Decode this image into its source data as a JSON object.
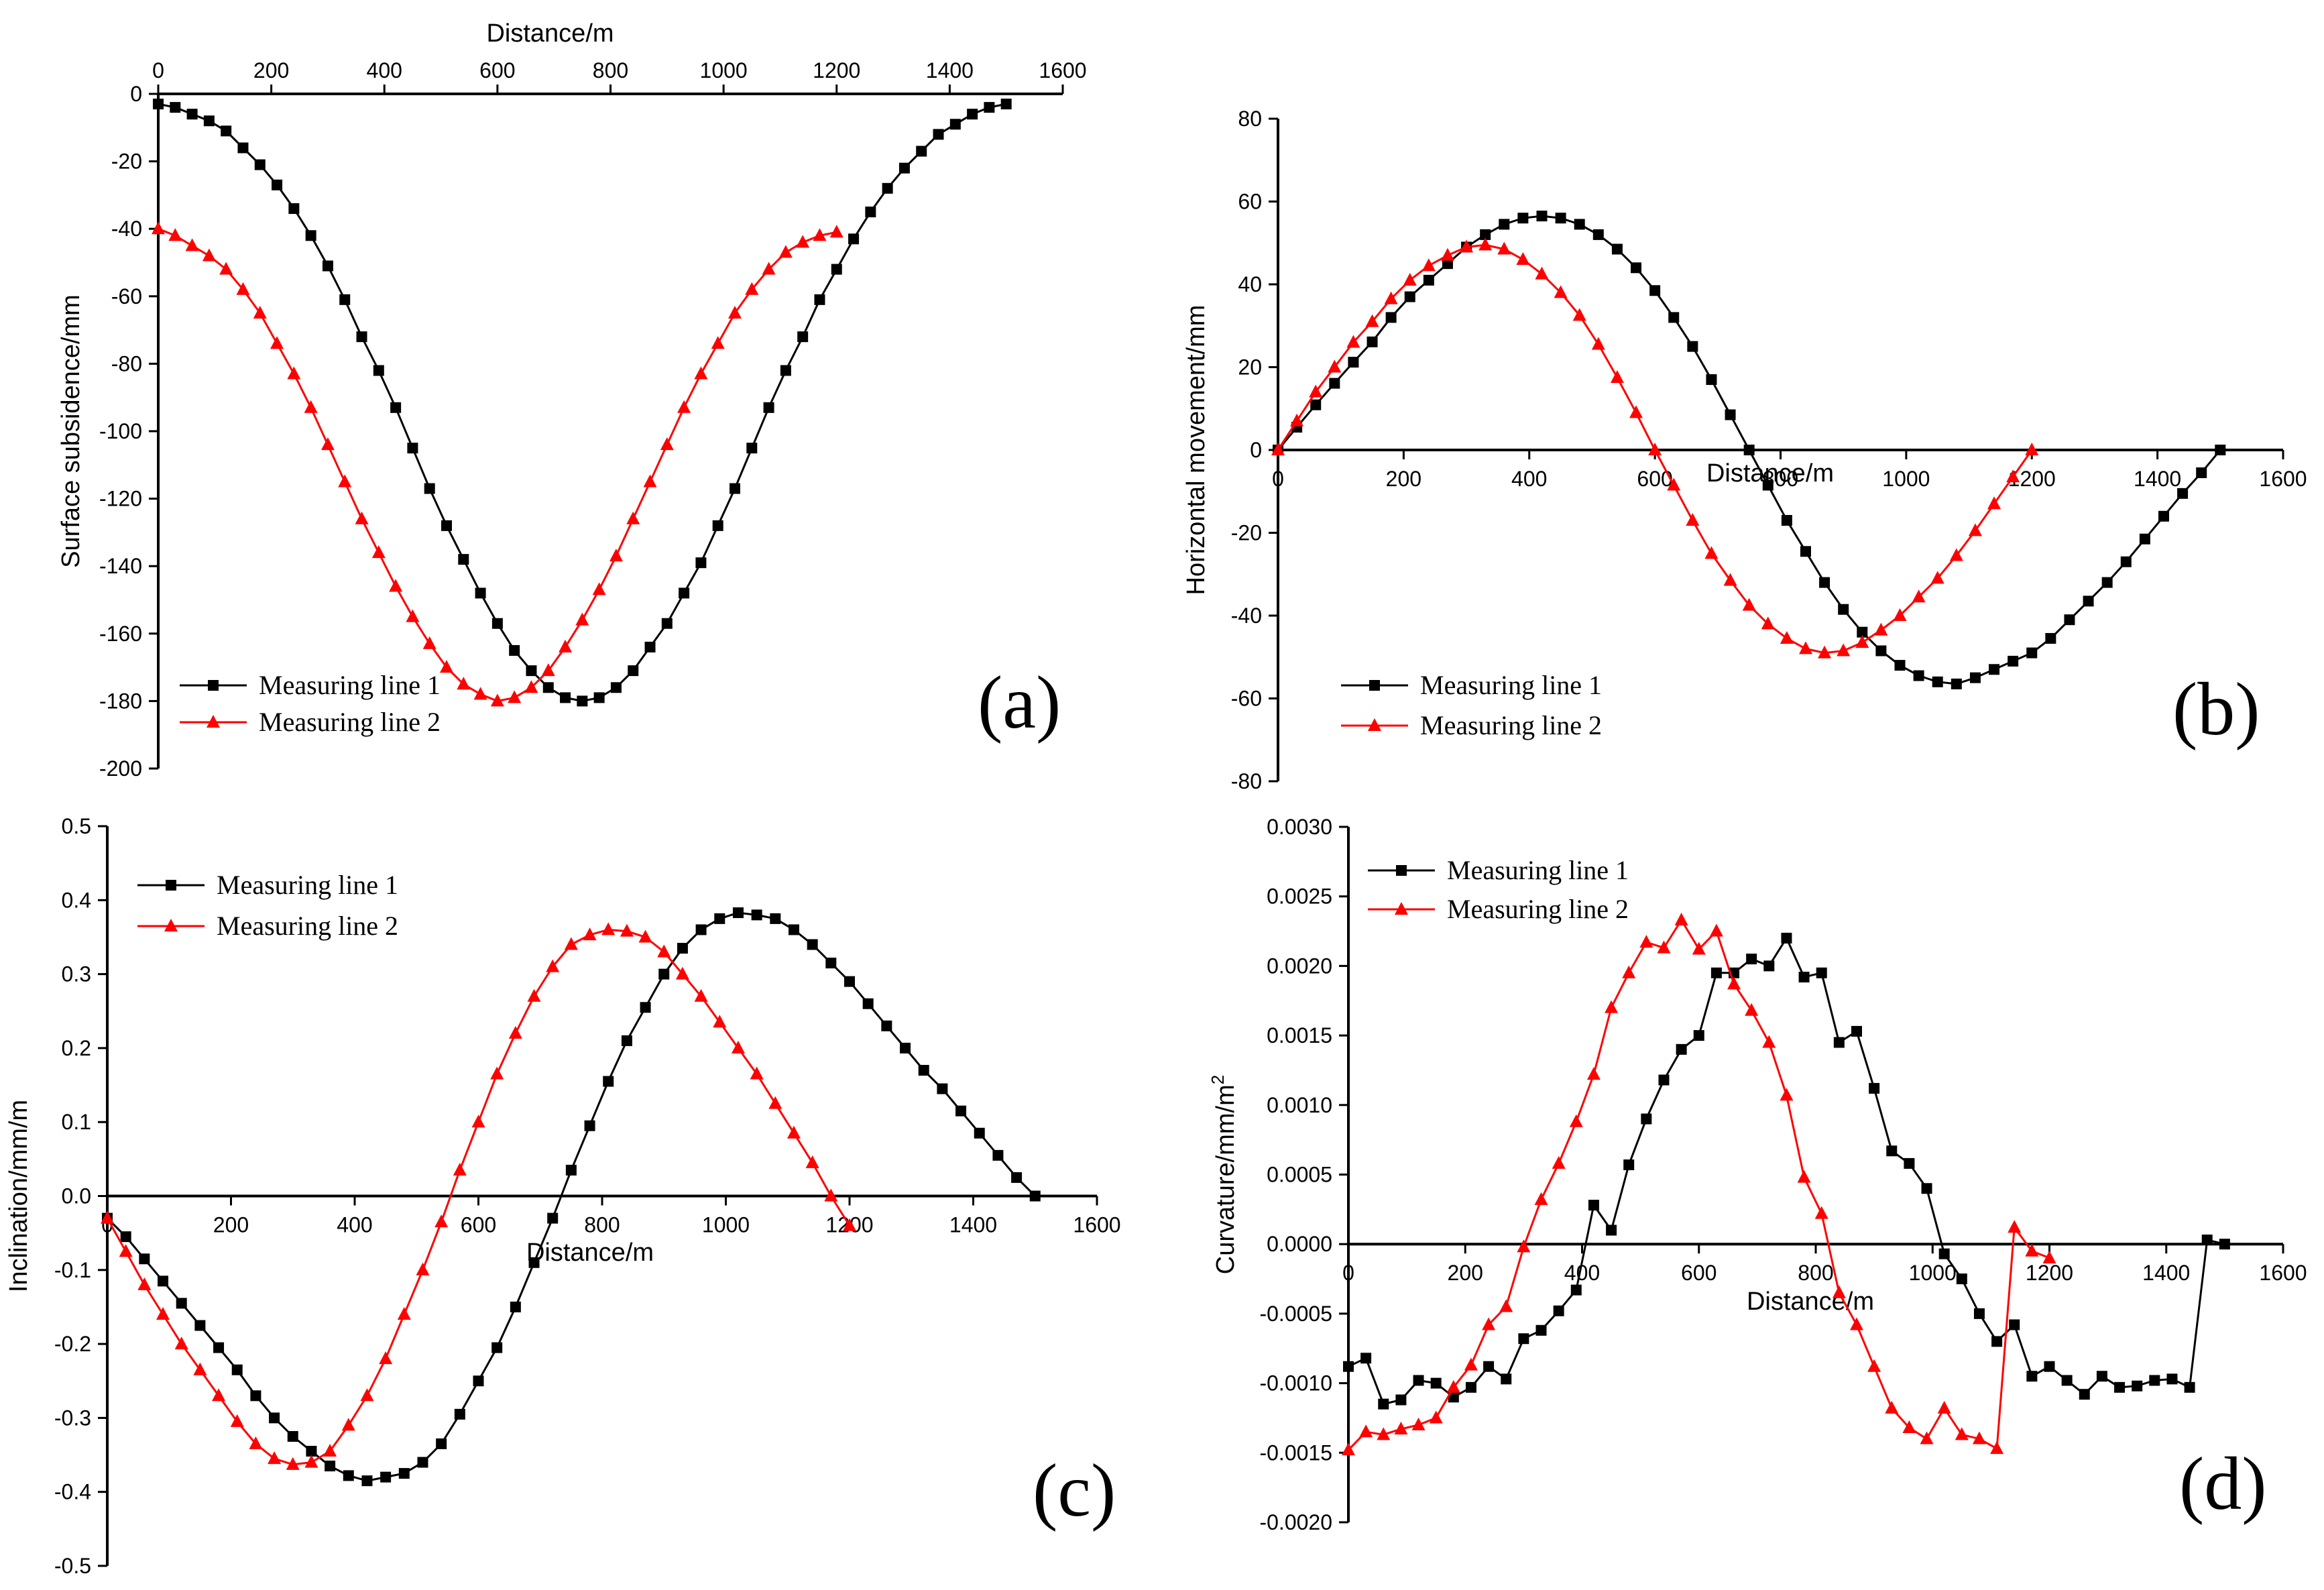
{
  "chart_data": [
    {
      "id": "a",
      "type": "line",
      "panel_label": "(a)",
      "xlabel": "Distance/m",
      "ylabel": "Surface subsidence/mm",
      "xlim": [
        0,
        1600
      ],
      "ylim": [
        -200,
        0
      ],
      "xticks": [
        "0",
        "200",
        "400",
        "600",
        "800",
        "1000",
        "1200",
        "1400",
        "1600"
      ],
      "yticks": [
        "0",
        "-20",
        "-40",
        "-60",
        "-80",
        "-100",
        "-120",
        "-140",
        "-160",
        "-180",
        "-200"
      ],
      "legend_position": "bottom-left",
      "series": [
        {
          "name": "Measuring line 1",
          "color": "#000000",
          "marker": "square",
          "x": [
            0,
            30,
            60,
            90,
            120,
            150,
            180,
            210,
            240,
            270,
            300,
            330,
            360,
            390,
            420,
            450,
            480,
            510,
            540,
            570,
            600,
            630,
            660,
            690,
            720,
            750,
            780,
            810,
            840,
            870,
            900,
            930,
            960,
            990,
            1020,
            1050,
            1080,
            1110,
            1140,
            1170,
            1200,
            1230,
            1260,
            1290,
            1320,
            1350,
            1380,
            1410,
            1440,
            1470,
            1500
          ],
          "y": [
            -3,
            -4,
            -6,
            -8,
            -11,
            -16,
            -21,
            -27,
            -34,
            -42,
            -51,
            -61,
            -72,
            -82,
            -93,
            -105,
            -117,
            -128,
            -138,
            -148,
            -157,
            -165,
            -171,
            -176,
            -179,
            -180,
            -179,
            -176,
            -171,
            -164,
            -157,
            -148,
            -139,
            -128,
            -117,
            -105,
            -93,
            -82,
            -72,
            -61,
            -52,
            -43,
            -35,
            -28,
            -22,
            -17,
            -12,
            -9,
            -6,
            -4,
            -3
          ]
        },
        {
          "name": "Measuring line 2",
          "color": "#ff0000",
          "marker": "triangle",
          "x": [
            0,
            30,
            60,
            90,
            120,
            150,
            180,
            210,
            240,
            270,
            300,
            330,
            360,
            390,
            420,
            450,
            480,
            510,
            540,
            570,
            600,
            630,
            660,
            690,
            720,
            750,
            780,
            810,
            840,
            870,
            900,
            930,
            960,
            990,
            1020,
            1050,
            1080,
            1110,
            1140,
            1170,
            1200
          ],
          "y": [
            -40,
            -42,
            -45,
            -48,
            -52,
            -58,
            -65,
            -74,
            -83,
            -93,
            -104,
            -115,
            -126,
            -136,
            -146,
            -155,
            -163,
            -170,
            -175,
            -178,
            -180,
            -179,
            -176,
            -171,
            -164,
            -156,
            -147,
            -137,
            -126,
            -115,
            -104,
            -93,
            -83,
            -74,
            -65,
            -58,
            -52,
            -47,
            -44,
            -42,
            -41
          ]
        }
      ]
    },
    {
      "id": "b",
      "type": "line",
      "panel_label": "(b)",
      "xlabel": "Distance/m",
      "ylabel": "Horizontal movement/mm",
      "xlim": [
        0,
        1600
      ],
      "ylim": [
        -80,
        80
      ],
      "xticks": [
        "0",
        "200",
        "400",
        "600",
        "800",
        "1000",
        "1200",
        "1400",
        "1600"
      ],
      "yticks": [
        "80",
        "60",
        "40",
        "20",
        "0",
        "-20",
        "-40",
        "-60",
        "-80"
      ],
      "legend_position": "bottom-left",
      "series": [
        {
          "name": "Measuring line 1",
          "color": "#000000",
          "marker": "square",
          "x": [
            0,
            30,
            60,
            90,
            120,
            150,
            180,
            210,
            240,
            270,
            300,
            330,
            360,
            390,
            420,
            450,
            480,
            510,
            540,
            570,
            600,
            630,
            660,
            690,
            720,
            750,
            780,
            810,
            840,
            870,
            900,
            930,
            960,
            990,
            1020,
            1050,
            1080,
            1110,
            1140,
            1170,
            1200,
            1230,
            1260,
            1290,
            1320,
            1350,
            1380,
            1410,
            1440,
            1470,
            1500
          ],
          "y": [
            0,
            5.5,
            10.9,
            16.1,
            21.2,
            26.1,
            32,
            37,
            41,
            45,
            49,
            52,
            54.5,
            56,
            56.5,
            56,
            54.5,
            52,
            48.5,
            44,
            38.5,
            32,
            25,
            17,
            8.5,
            0,
            -8.5,
            -17,
            -24.5,
            -32,
            -38.5,
            -44,
            -48.5,
            -52,
            -54.5,
            -56,
            -56.5,
            -55,
            -53,
            -51,
            -49,
            -45.5,
            -41,
            -36.5,
            -32,
            -27,
            -21.5,
            -16,
            -10.5,
            -5.5,
            0
          ]
        },
        {
          "name": "Measuring line 2",
          "color": "#ff0000",
          "marker": "triangle",
          "x": [
            0,
            30,
            60,
            90,
            120,
            150,
            180,
            210,
            240,
            270,
            300,
            330,
            360,
            390,
            420,
            450,
            480,
            510,
            540,
            570,
            600,
            630,
            660,
            690,
            720,
            750,
            780,
            810,
            840,
            870,
            900,
            930,
            960,
            990,
            1020,
            1050,
            1080,
            1110,
            1140,
            1170,
            1200
          ],
          "y": [
            0,
            7,
            14,
            20,
            26,
            31,
            36.5,
            41,
            44.5,
            47,
            49,
            49.5,
            48.5,
            46,
            42.5,
            38,
            32.5,
            25.5,
            17.5,
            9,
            0,
            -8.5,
            -17,
            -25,
            -31.5,
            -37.5,
            -42,
            -45.5,
            -48,
            -49,
            -48.5,
            -46.5,
            -43.5,
            -40,
            -35.5,
            -31,
            -25.5,
            -19.5,
            -13,
            -6.5,
            0
          ]
        }
      ]
    },
    {
      "id": "c",
      "type": "line",
      "panel_label": "(c)",
      "xlabel": "Distance/m",
      "ylabel": "Inclination/mm/m",
      "xlim": [
        0,
        1600
      ],
      "ylim": [
        -0.5,
        0.5
      ],
      "xticks": [
        "0",
        "200",
        "400",
        "600",
        "800",
        "1000",
        "1200",
        "1400",
        "1600"
      ],
      "yticks": [
        "0.5",
        "0.4",
        "0.3",
        "0.2",
        "0.1",
        "0.0",
        "-0.1",
        "-0.2",
        "-0.3",
        "-0.4",
        "-0.5"
      ],
      "legend_position": "top-left",
      "series": [
        {
          "name": "Measuring line 1",
          "color": "#000000",
          "marker": "square",
          "x": [
            0,
            30,
            60,
            90,
            120,
            150,
            180,
            210,
            240,
            270,
            300,
            330,
            360,
            390,
            420,
            450,
            480,
            510,
            540,
            570,
            600,
            630,
            660,
            690,
            720,
            750,
            780,
            810,
            840,
            870,
            900,
            930,
            960,
            990,
            1020,
            1050,
            1080,
            1110,
            1140,
            1170,
            1200,
            1230,
            1260,
            1290,
            1320,
            1350,
            1380,
            1410,
            1440,
            1470,
            1500
          ],
          "y": [
            -0.03,
            -0.055,
            -0.085,
            -0.115,
            -0.145,
            -0.175,
            -0.205,
            -0.235,
            -0.27,
            -0.3,
            -0.325,
            -0.345,
            -0.365,
            -0.378,
            -0.385,
            -0.38,
            -0.375,
            -0.36,
            -0.335,
            -0.295,
            -0.25,
            -0.205,
            -0.15,
            -0.09,
            -0.03,
            0.035,
            0.095,
            0.155,
            0.21,
            0.255,
            0.3,
            0.335,
            0.36,
            0.375,
            0.383,
            0.38,
            0.375,
            0.36,
            0.34,
            0.315,
            0.29,
            0.26,
            0.23,
            0.2,
            0.17,
            0.145,
            0.115,
            0.085,
            0.055,
            0.025,
            0.0
          ]
        },
        {
          "name": "Measuring line 2",
          "color": "#ff0000",
          "marker": "triangle",
          "x": [
            0,
            30,
            60,
            90,
            120,
            150,
            180,
            210,
            240,
            270,
            300,
            330,
            360,
            390,
            420,
            450,
            480,
            510,
            540,
            570,
            600,
            630,
            660,
            690,
            720,
            750,
            780,
            810,
            840,
            870,
            900,
            930,
            960,
            990,
            1020,
            1050,
            1080,
            1110,
            1140,
            1170,
            1200
          ],
          "y": [
            -0.03,
            -0.075,
            -0.12,
            -0.16,
            -0.2,
            -0.235,
            -0.27,
            -0.305,
            -0.335,
            -0.355,
            -0.363,
            -0.36,
            -0.345,
            -0.31,
            -0.27,
            -0.22,
            -0.16,
            -0.1,
            -0.035,
            0.035,
            0.1,
            0.165,
            0.22,
            0.27,
            0.31,
            0.34,
            0.353,
            0.36,
            0.358,
            0.35,
            0.33,
            0.3,
            0.27,
            0.235,
            0.2,
            0.165,
            0.125,
            0.085,
            0.045,
            0.0,
            -0.04
          ]
        }
      ]
    },
    {
      "id": "d",
      "type": "line",
      "panel_label": "(d)",
      "xlabel": "Distance/m",
      "ylabel": "Curvature/mm/m",
      "ylabel_superscript": "2",
      "xlim": [
        0,
        1600
      ],
      "ylim": [
        -0.002,
        0.003
      ],
      "xticks": [
        "0",
        "200",
        "400",
        "600",
        "800",
        "1000",
        "1200",
        "1400",
        "1600"
      ],
      "yticks": [
        "0.0030",
        "0.0025",
        "0.0020",
        "0.0015",
        "0.0010",
        "0.0005",
        "0.0000",
        "-0.0005",
        "-0.0010",
        "-0.0015",
        "-0.0020"
      ],
      "legend_position": "top-left",
      "series": [
        {
          "name": "Measuring line 1",
          "color": "#000000",
          "marker": "square",
          "x": [
            0,
            30,
            60,
            90,
            120,
            150,
            180,
            210,
            240,
            270,
            300,
            330,
            360,
            390,
            420,
            450,
            480,
            510,
            540,
            570,
            600,
            630,
            660,
            690,
            720,
            750,
            780,
            810,
            840,
            870,
            900,
            930,
            960,
            990,
            1020,
            1050,
            1080,
            1110,
            1140,
            1170,
            1200,
            1230,
            1260,
            1290,
            1320,
            1350,
            1380,
            1410,
            1440,
            1470,
            1500
          ],
          "y": [
            -0.00088,
            -0.00082,
            -0.00115,
            -0.00112,
            -0.00098,
            -0.001,
            -0.0011,
            -0.00103,
            -0.00088,
            -0.00097,
            -0.00068,
            -0.00062,
            -0.00048,
            -0.00033,
            0.00028,
            0.0001,
            0.00057,
            0.0009,
            0.00118,
            0.0014,
            0.0015,
            0.00195,
            0.00195,
            0.00205,
            0.002,
            0.0022,
            0.00192,
            0.00195,
            0.00145,
            0.00153,
            0.00112,
            0.00067,
            0.00058,
            0.0004,
            -7e-05,
            -0.00025,
            -0.0005,
            -0.0007,
            -0.00058,
            -0.00095,
            -0.00088,
            -0.00098,
            -0.00108,
            -0.00095,
            -0.00103,
            -0.00102,
            -0.00098,
            -0.00097,
            -0.00103,
            3e-05,
            0.0
          ]
        },
        {
          "name": "Measuring line 2",
          "color": "#ff0000",
          "marker": "triangle",
          "x": [
            0,
            30,
            60,
            90,
            120,
            150,
            180,
            210,
            240,
            270,
            300,
            330,
            360,
            390,
            420,
            450,
            480,
            510,
            540,
            570,
            600,
            630,
            660,
            690,
            720,
            750,
            780,
            810,
            840,
            870,
            900,
            930,
            960,
            990,
            1020,
            1050,
            1080,
            1110,
            1140,
            1170,
            1200
          ],
          "y": [
            -0.00148,
            -0.00135,
            -0.00137,
            -0.00133,
            -0.0013,
            -0.00125,
            -0.00103,
            -0.00087,
            -0.00058,
            -0.00045,
            -2e-05,
            0.00032,
            0.00058,
            0.00088,
            0.00122,
            0.0017,
            0.00195,
            0.00217,
            0.00213,
            0.00233,
            0.00212,
            0.00225,
            0.00187,
            0.00168,
            0.00145,
            0.00107,
            0.00048,
            0.00022,
            -0.00035,
            -0.00058,
            -0.00088,
            -0.00118,
            -0.00132,
            -0.0014,
            -0.00118,
            -0.00137,
            -0.0014,
            -0.00147,
            0.00012,
            -5e-05,
            -0.0001
          ]
        }
      ]
    }
  ]
}
